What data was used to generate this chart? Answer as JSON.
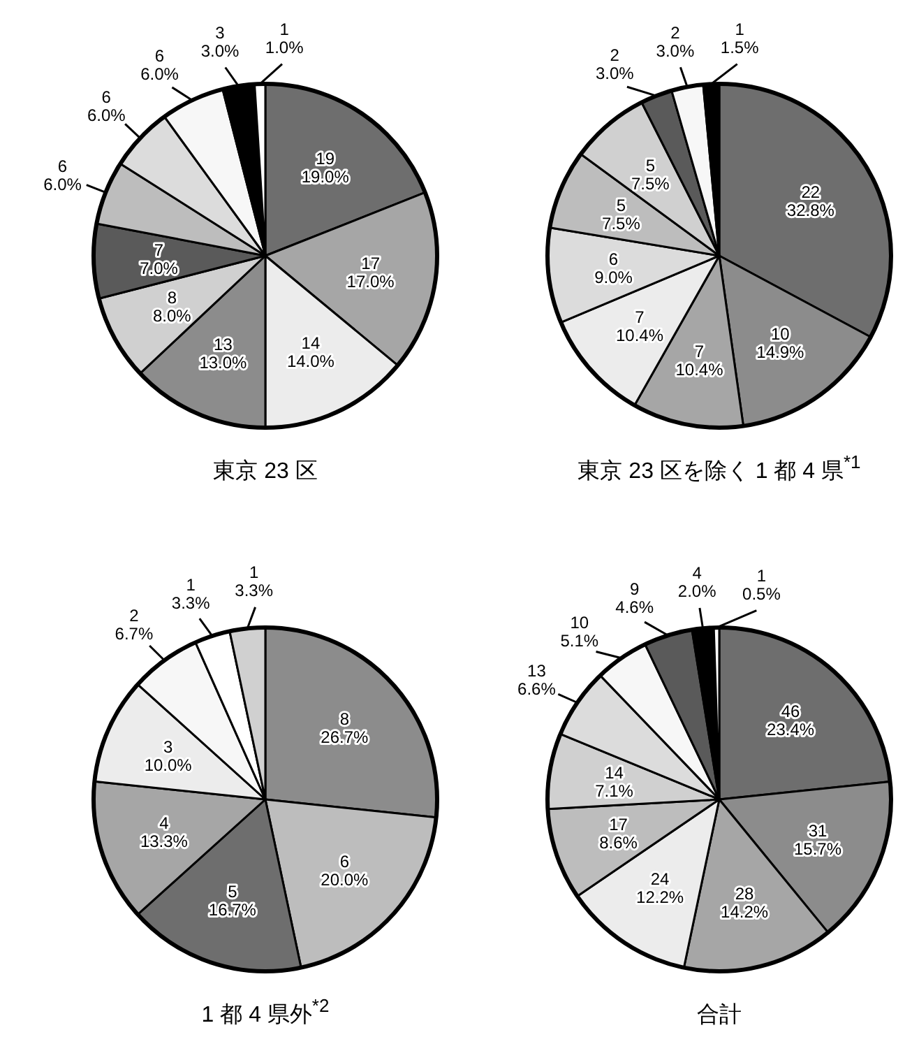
{
  "chart_data": [
    {
      "type": "pie",
      "title": "東京 23 区",
      "categories": [
        null,
        null,
        null,
        null,
        null,
        null,
        null,
        null,
        null,
        null,
        null
      ],
      "values": [
        19,
        17,
        14,
        13,
        8,
        7,
        6,
        6,
        6,
        3,
        1
      ],
      "value_labels": [
        "19\n19.0%",
        "17\n17.0%",
        "14\n14.0%",
        "13\n13.0%",
        "8\n8.0%",
        "7\n7.0%",
        "6\n6.0%",
        "6\n6.0%",
        "6\n6.0%",
        "3\n3.0%",
        "1\n1.0%"
      ],
      "colors": [
        "#6e6e6e",
        "#a6a6a6",
        "#ececec",
        "#8c8c8c",
        "#d0d0d0",
        "#5a5a5a",
        "#bdbdbd",
        "#dcdcdc",
        "#f7f7f7",
        "#000000",
        "#ffffff"
      ]
    },
    {
      "type": "pie",
      "title": "東京 23 区を除く 1 都 4 県$^{*1}$",
      "categories": [
        null,
        null,
        null,
        null,
        null,
        null,
        null,
        null,
        null,
        null
      ],
      "values": [
        22,
        10,
        7,
        7,
        6,
        5,
        5,
        2,
        2,
        1
      ],
      "value_labels": [
        "22\n32.8%",
        "10\n14.9%",
        "7\n10.4%",
        "7\n10.4%",
        "6\n9.0%",
        "5\n7.5%",
        "5\n7.5%",
        "2\n3.0%",
        "2\n3.0%",
        "1\n1.5%"
      ],
      "colors": [
        "#6e6e6e",
        "#8c8c8c",
        "#a6a6a6",
        "#ececec",
        "#dcdcdc",
        "#bdbdbd",
        "#d0d0d0",
        "#5a5a5a",
        "#f7f7f7",
        "#000000"
      ]
    },
    {
      "type": "pie",
      "title": "1 都 4 県外$^{*2}$",
      "categories": [
        null,
        null,
        null,
        null,
        null,
        null,
        null,
        null
      ],
      "values": [
        8,
        6,
        5,
        4,
        3,
        2,
        1,
        1
      ],
      "value_labels": [
        "8\n26.7%",
        "6\n20.0%",
        "5\n16.7%",
        "4\n13.3%",
        "3\n10.0%",
        "2\n6.7%",
        "1\n3.3%",
        "1\n3.3%"
      ],
      "colors": [
        "#8c8c8c",
        "#bdbdbd",
        "#6e6e6e",
        "#a6a6a6",
        "#ececec",
        "#f7f7f7",
        "#ffffff",
        "#d0d0d0"
      ]
    },
    {
      "type": "pie",
      "title": "合計",
      "categories": [
        null,
        null,
        null,
        null,
        null,
        null,
        null,
        null,
        null,
        null,
        null
      ],
      "values": [
        46,
        31,
        28,
        24,
        17,
        14,
        13,
        10,
        9,
        4,
        1
      ],
      "value_labels": [
        "46\n23.4%",
        "31\n15.7%",
        "28\n14.2%",
        "24\n12.2%",
        "17\n8.6%",
        "14\n7.1%",
        "13\n6.6%",
        "10\n5.1%",
        "9\n4.6%",
        "4\n2.0%",
        "1\n0.5%"
      ],
      "colors": [
        "#6e6e6e",
        "#8c8c8c",
        "#a6a6a6",
        "#ececec",
        "#bdbdbd",
        "#d0d0d0",
        "#dcdcdc",
        "#f7f7f7",
        "#5a5a5a",
        "#000000",
        "#ffffff"
      ]
    }
  ]
}
